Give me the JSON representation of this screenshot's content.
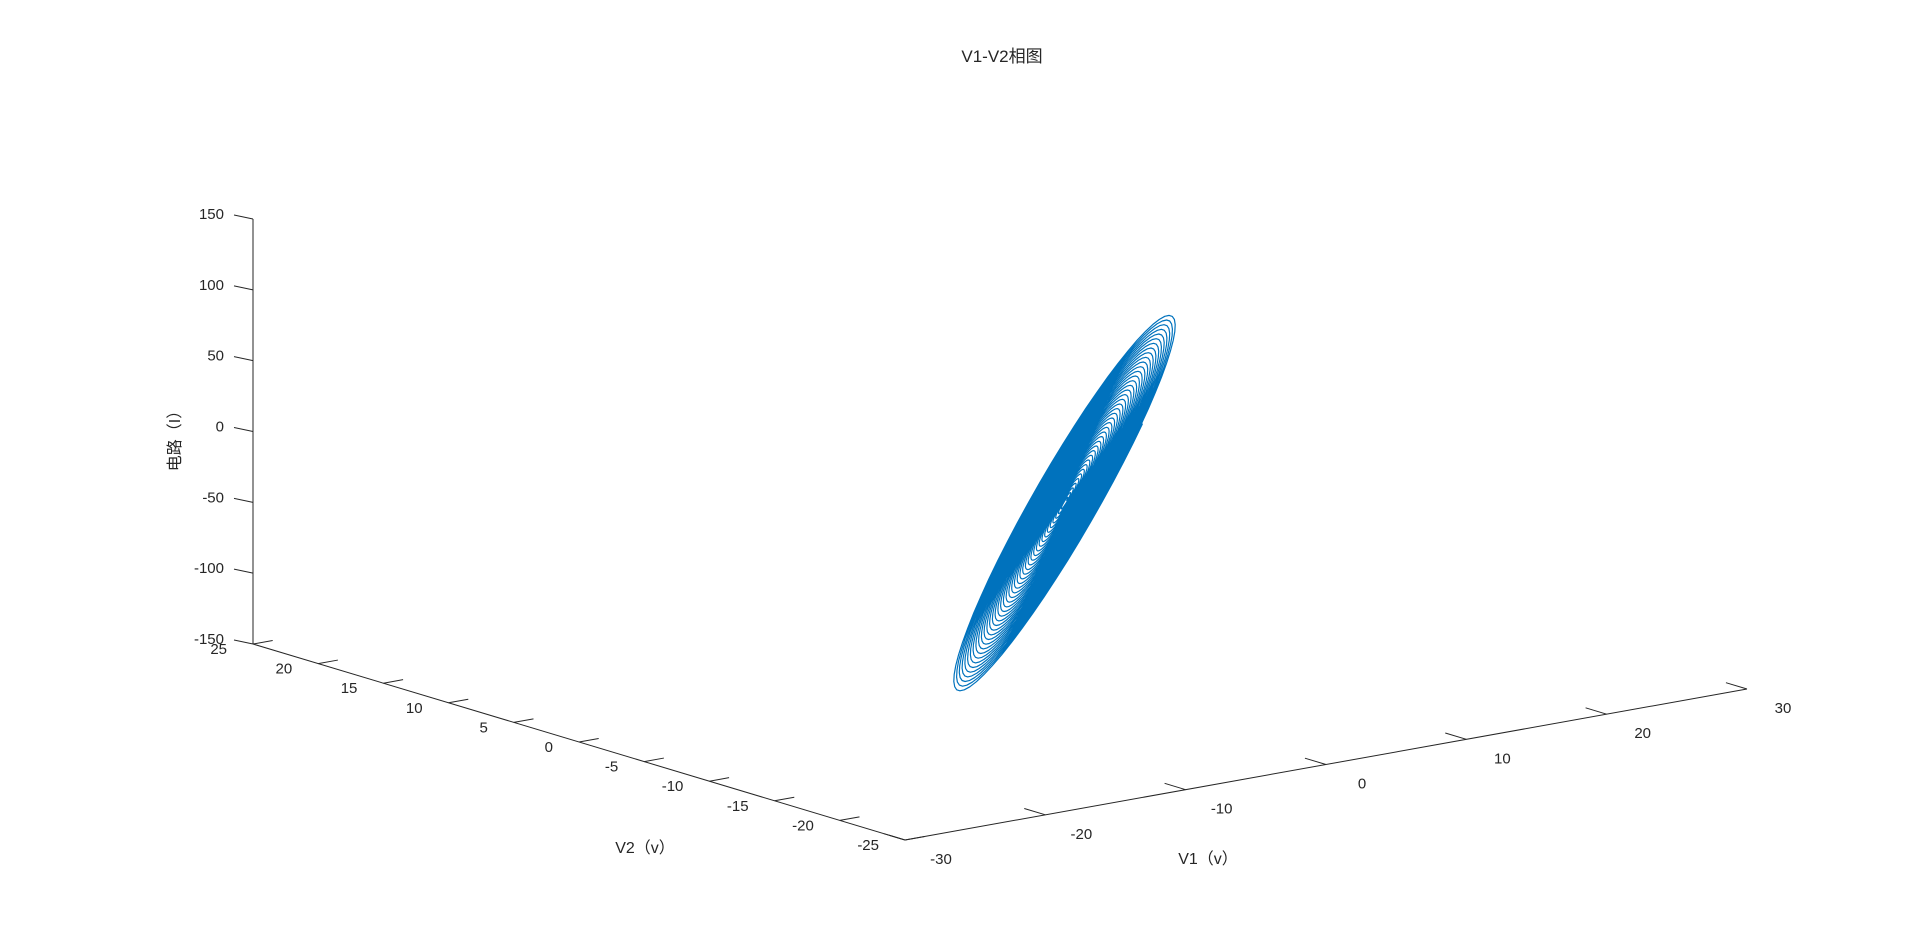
{
  "chart_data": {
    "type": "line",
    "projection": "3d",
    "title": "V1-V2相图",
    "xlabel": "V1（v）",
    "ylabel": "V2（v）",
    "zlabel": "电路（I）",
    "xlim": [
      -30,
      30
    ],
    "ylim": [
      -25,
      25
    ],
    "zlim": [
      -150,
      150
    ],
    "xticks": [
      "-30",
      "-20",
      "-10",
      "0",
      "10",
      "20",
      "30"
    ],
    "yticks": [
      "-25",
      "-20",
      "-15",
      "-10",
      "-5",
      "0",
      "5",
      "10",
      "15",
      "20",
      "25"
    ],
    "zticks": [
      "-150",
      "-100",
      "-50",
      "0",
      "50",
      "100",
      "150"
    ],
    "grid": false,
    "series": [
      {
        "color": "#0072BD",
        "shape": "spiral",
        "turns": 40,
        "center": {
          "x": 0,
          "y": -5,
          "z": -20
        },
        "end_amplitude": {
          "x": 15,
          "y": 12,
          "z": 140
        }
      }
    ]
  }
}
